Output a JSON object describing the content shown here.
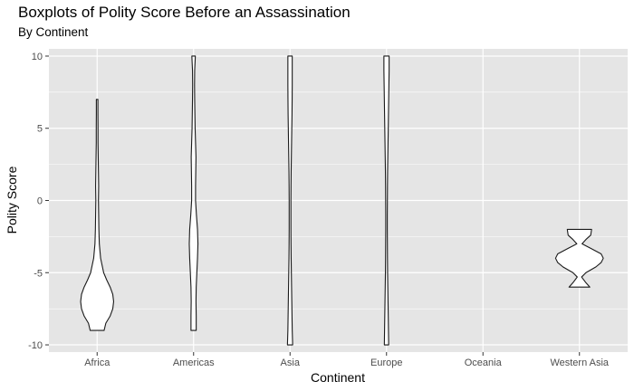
{
  "chart_data": {
    "type": "violin",
    "title": "Boxplots of Polity Score Before an Assassination",
    "subtitle": "By Continent",
    "xlabel": "Continent",
    "ylabel": "Polity Score",
    "categories": [
      "Africa",
      "Americas",
      "Asia",
      "Europe",
      "Oceania",
      "Western Asia"
    ],
    "yticks": [
      10,
      5,
      0,
      -5,
      -10
    ],
    "ylim": [
      -10.5,
      10.5
    ],
    "grid": true,
    "background_color": "#e5e5e5",
    "grid_color": "#ffffff",
    "outline_color": "#1a1a1a",
    "violins": [
      {
        "category": "Africa",
        "profile": [
          [
            -9,
            0.16
          ],
          [
            -8.5,
            0.2
          ],
          [
            -8,
            0.3
          ],
          [
            -7.5,
            0.36
          ],
          [
            -7,
            0.38
          ],
          [
            -6.5,
            0.36
          ],
          [
            -6,
            0.3
          ],
          [
            -5.5,
            0.22
          ],
          [
            -5,
            0.15
          ],
          [
            -4,
            0.08
          ],
          [
            -3,
            0.05
          ],
          [
            -2,
            0.04
          ],
          [
            -1,
            0.035
          ],
          [
            0,
            0.03
          ],
          [
            1,
            0.035
          ],
          [
            2,
            0.03
          ],
          [
            3,
            0.025
          ],
          [
            4,
            0.02
          ],
          [
            5,
            0.02
          ],
          [
            6,
            0.018
          ],
          [
            7,
            0.018
          ]
        ]
      },
      {
        "category": "Americas",
        "profile": [
          [
            -9,
            0.06
          ],
          [
            -8,
            0.06
          ],
          [
            -7,
            0.055
          ],
          [
            -6,
            0.06
          ],
          [
            -5,
            0.075
          ],
          [
            -4,
            0.09
          ],
          [
            -3,
            0.1
          ],
          [
            -2,
            0.09
          ],
          [
            -1,
            0.065
          ],
          [
            0,
            0.045
          ],
          [
            1,
            0.045
          ],
          [
            2,
            0.05
          ],
          [
            3,
            0.055
          ],
          [
            4,
            0.045
          ],
          [
            5,
            0.035
          ],
          [
            6,
            0.03
          ],
          [
            7,
            0.025
          ],
          [
            8,
            0.022
          ],
          [
            9,
            0.025
          ],
          [
            10,
            0.04
          ]
        ]
      },
      {
        "category": "Asia",
        "profile": [
          [
            -10,
            0.06
          ],
          [
            -9,
            0.05
          ],
          [
            -8,
            0.045
          ],
          [
            -7,
            0.04
          ],
          [
            -6,
            0.035
          ],
          [
            -5,
            0.03
          ],
          [
            -4,
            0.025
          ],
          [
            -3,
            0.022
          ],
          [
            -2,
            0.02
          ],
          [
            -1,
            0.02
          ],
          [
            0,
            0.02
          ],
          [
            1,
            0.022
          ],
          [
            2,
            0.025
          ],
          [
            3,
            0.03
          ],
          [
            4,
            0.035
          ],
          [
            5,
            0.04
          ],
          [
            6,
            0.045
          ],
          [
            7,
            0.048
          ],
          [
            8,
            0.05
          ],
          [
            9,
            0.05
          ],
          [
            10,
            0.05
          ]
        ]
      },
      {
        "category": "Europe",
        "profile": [
          [
            -10,
            0.05
          ],
          [
            -9,
            0.045
          ],
          [
            -8,
            0.04
          ],
          [
            -7,
            0.035
          ],
          [
            -6,
            0.03
          ],
          [
            -5,
            0.025
          ],
          [
            -4,
            0.022
          ],
          [
            -3,
            0.02
          ],
          [
            -2,
            0.018
          ],
          [
            -1,
            0.018
          ],
          [
            0,
            0.02
          ],
          [
            1,
            0.022
          ],
          [
            2,
            0.025
          ],
          [
            3,
            0.03
          ],
          [
            4,
            0.035
          ],
          [
            5,
            0.04
          ],
          [
            6,
            0.045
          ],
          [
            7,
            0.05
          ],
          [
            8,
            0.055
          ],
          [
            9,
            0.06
          ],
          [
            10,
            0.06
          ]
        ]
      },
      {
        "category": "Western Asia",
        "profile": [
          [
            -6,
            0.24
          ],
          [
            -5.7,
            0.15
          ],
          [
            -5.3,
            0.05
          ],
          [
            -5,
            0.15
          ],
          [
            -4.6,
            0.38
          ],
          [
            -4.3,
            0.5
          ],
          [
            -4,
            0.55
          ],
          [
            -3.7,
            0.5
          ],
          [
            -3.3,
            0.25
          ],
          [
            -3,
            0.06
          ],
          [
            -2.7,
            0.15
          ],
          [
            -2.4,
            0.26
          ],
          [
            -2,
            0.28
          ]
        ]
      }
    ]
  }
}
